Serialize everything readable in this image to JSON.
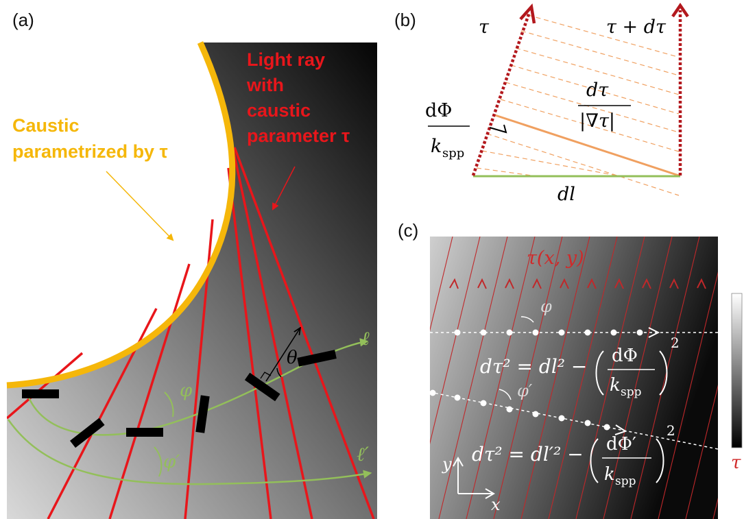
{
  "labels": {
    "panel_a": "(a)",
    "panel_b": "(b)",
    "panel_c": "(c)"
  },
  "panel_a": {
    "light_ray_lines": [
      "Light ray",
      "with",
      "caustic",
      "parameter τ"
    ],
    "caustic_lines": [
      "Caustic",
      "parametrized by τ"
    ],
    "ell": "ℓ",
    "ell_prime": "ℓ′",
    "phi": "φ",
    "phi_prime": "φ′",
    "theta": "θ"
  },
  "panel_b": {
    "tau": "τ",
    "tau_plus": "τ + dτ",
    "dphi_num": "dΦ",
    "dphi_den": "k",
    "dphi_den_sub": "spp",
    "dtau_num": "dτ",
    "dtau_den": "|∇τ|",
    "dl": "dl"
  },
  "panel_c": {
    "tau_xy": "τ(x, y)",
    "phi": "φ",
    "phi_prime": "φ′",
    "eq1_left": "dτ² = dl² −",
    "eq1_num": "dΦ",
    "eq1_den": "k",
    "eq1_den_sub": "spp",
    "eq1_exp": "2",
    "eq2_left": "dτ² = dl′² −",
    "eq2_num": "dΦ′",
    "eq2_den": "k",
    "eq2_den_sub": "spp",
    "eq2_exp": "2",
    "x_axis": "x",
    "y_axis": "y",
    "colorbar_label": "τ"
  },
  "colors": {
    "ray_red": "#e8161b",
    "caustic_yellow": "#f5b70a",
    "path_green": "#93bf5a",
    "dark_red": "#b3181d",
    "orange": "#f0a060"
  }
}
